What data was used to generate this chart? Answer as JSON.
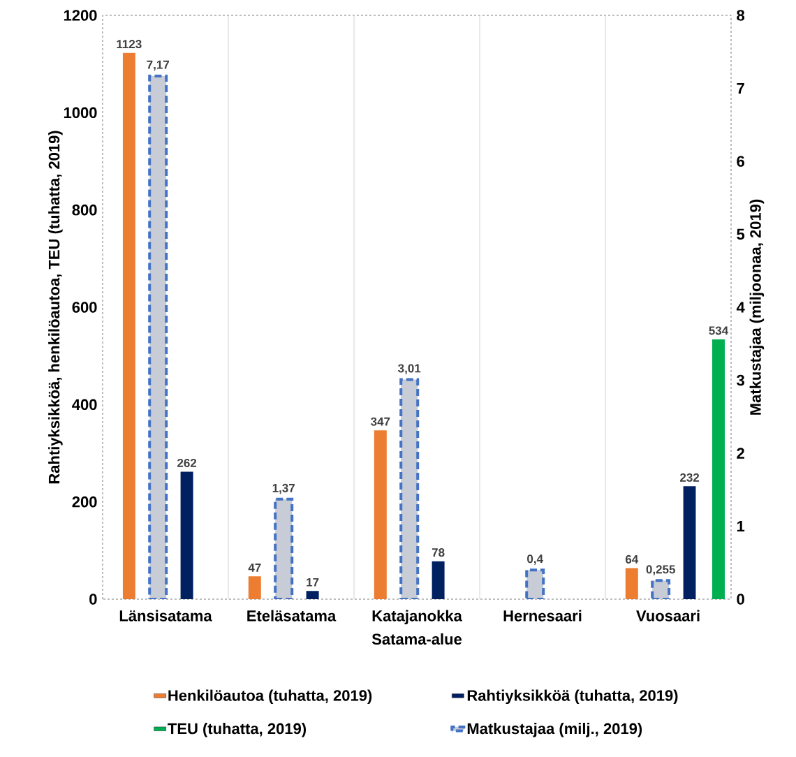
{
  "chart_data": {
    "type": "bar",
    "xlabel": "Satama-alue",
    "ylabel": "Rahtiyksikköä, henkilöautoa, TEU (tuhatta, 2019)",
    "y2label": "Matkustajaa (miljoonaa, 2019)",
    "categories": [
      "Länsisatama",
      "Eteläsatama",
      "Katajanokka",
      "Hernesaari",
      "Vuosaari"
    ],
    "series": [
      {
        "name": "Henkilöautoa (tuhatta, 2019)",
        "color": "#ed7d31",
        "values": [
          1123,
          47,
          347,
          null,
          64
        ],
        "value_labels": [
          "1123",
          "47",
          "347",
          null,
          "64"
        ]
      },
      {
        "name": "Rahtiyksikköä (tuhatta, 2019)",
        "color": "#002060",
        "values": [
          262,
          17,
          78,
          null,
          232
        ],
        "value_labels": [
          "262",
          "17",
          "78",
          null,
          "232"
        ]
      },
      {
        "name": "TEU (tuhatta, 2019)",
        "color": "#00b050",
        "values": [
          null,
          null,
          null,
          null,
          534
        ],
        "value_labels": [
          null,
          null,
          null,
          null,
          "534"
        ]
      },
      {
        "name": "Matkustajaa (milj., 2019)",
        "color": "#c8ccd6",
        "axis": "y2",
        "line_style": "dashed",
        "values": [
          7.17,
          1.37,
          3.01,
          0.4,
          0.255
        ],
        "value_labels": [
          "7,17",
          "1,37",
          "3,01",
          "0,4",
          "0,255"
        ]
      }
    ],
    "ylim": [
      0,
      1200
    ],
    "yticks": [
      0,
      200,
      400,
      600,
      800,
      1000,
      1200
    ],
    "y2lim": [
      0,
      8
    ],
    "y2ticks": [
      0,
      1,
      2,
      3,
      4,
      5,
      6,
      7,
      8
    ],
    "grid": "x",
    "legend": "bottom"
  }
}
